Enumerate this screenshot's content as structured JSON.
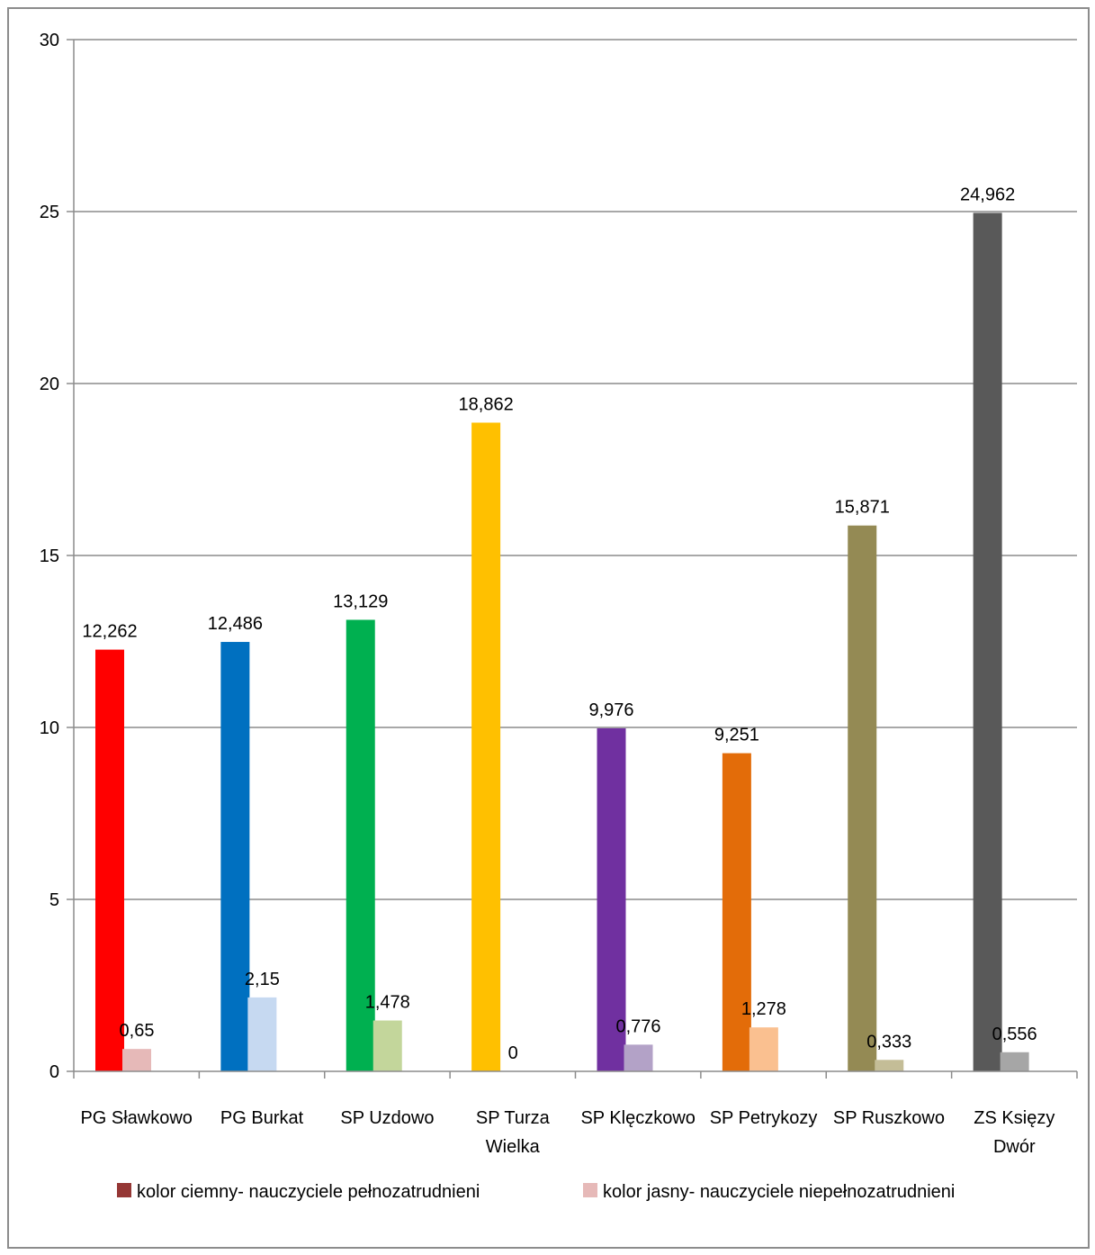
{
  "chart_data": {
    "type": "bar",
    "title": "",
    "xlabel": "",
    "ylabel": "",
    "ylim": [
      0,
      30
    ],
    "yticks": [
      "0",
      "5",
      "10",
      "15",
      "20",
      "25",
      "30"
    ],
    "grid": true,
    "legend_position": "bottom",
    "categories": [
      [
        "PG Sławkowo"
      ],
      [
        "PG Burkat"
      ],
      [
        "SP Uzdowo"
      ],
      [
        "SP Turza",
        "Wielka"
      ],
      [
        "SP Klęczkowo"
      ],
      [
        "SP Petrykozy"
      ],
      [
        "SP Ruszkowo"
      ],
      [
        "ZS Księzy",
        "Dwór"
      ]
    ],
    "series": [
      {
        "name": "kolor ciemny- nauczyciele pełnozatrudnieni",
        "legend_color": "#953735",
        "values": [
          12.262,
          12.486,
          13.129,
          18.862,
          9.976,
          9.251,
          15.871,
          24.962
        ],
        "labels": [
          "12,262",
          "12,486",
          "13,129",
          "18,862",
          "9,976",
          "9,251",
          "15,871",
          "24,962"
        ],
        "colors": [
          "#ff0000",
          "#0070c0",
          "#00b050",
          "#ffc000",
          "#7030a0",
          "#e36c09",
          "#948a54",
          "#595959"
        ]
      },
      {
        "name": "kolor jasny- nauczyciele niepełnozatrudnieni",
        "legend_color": "#e6b9b8",
        "values": [
          0.65,
          2.15,
          1.478,
          0,
          0.776,
          1.278,
          0.333,
          0.556
        ],
        "labels": [
          "0,65",
          "2,15",
          "1,478",
          "0",
          "0,776",
          "1,278",
          "0,333",
          "0,556"
        ],
        "colors": [
          "#e6b9b8",
          "#c6d9f1",
          "#c3d69b",
          "#fde9a9",
          "#b3a2c7",
          "#fac090",
          "#c4bd97",
          "#a6a6a6"
        ]
      }
    ]
  }
}
